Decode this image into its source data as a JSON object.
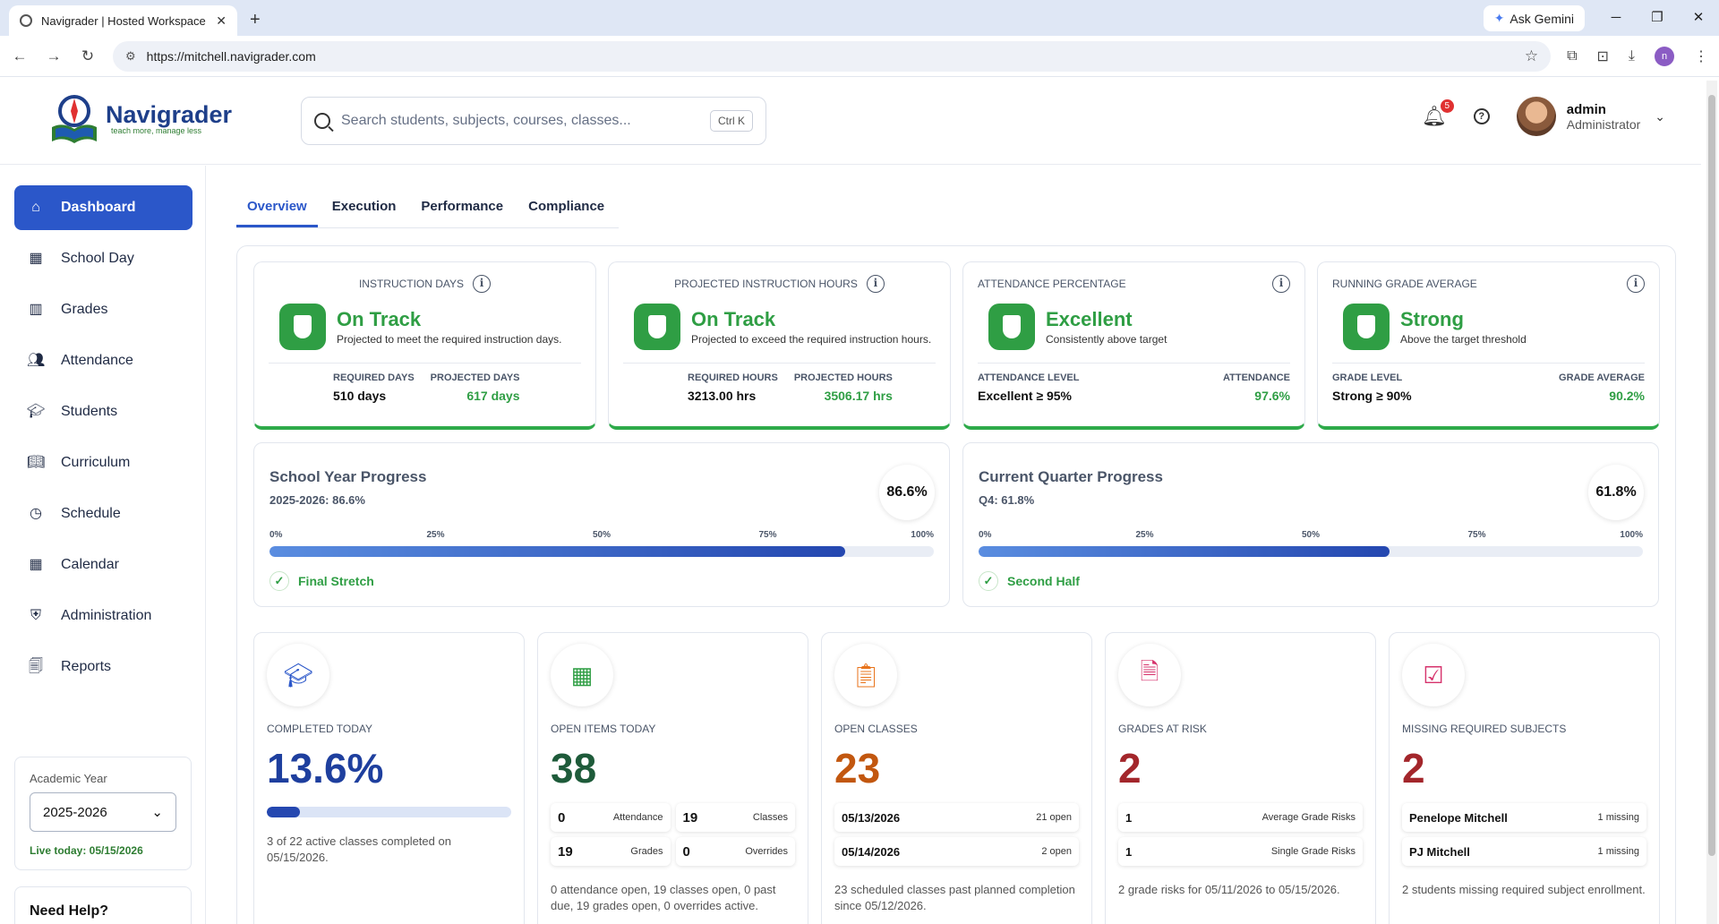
{
  "browser": {
    "tab_title": "Navigrader | Hosted Workspace",
    "url": "https://mitchell.navigrader.com",
    "gemini_label": "Ask Gemini",
    "profile_initial": "n"
  },
  "header": {
    "logo_name": "Navigrader",
    "logo_tagline": "teach more, manage less",
    "search_placeholder": "Search students, subjects, courses, classes...",
    "search_shortcut": "Ctrl K",
    "notification_count": "5",
    "user_name": "admin",
    "user_role": "Administrator"
  },
  "sidebar": {
    "items": [
      {
        "label": "Dashboard",
        "icon": "home-icon"
      },
      {
        "label": "School Day",
        "icon": "calendar-icon"
      },
      {
        "label": "Grades",
        "icon": "bar-chart-icon"
      },
      {
        "label": "Attendance",
        "icon": "people-icon"
      },
      {
        "label": "Students",
        "icon": "graduation-cap-icon"
      },
      {
        "label": "Curriculum",
        "icon": "book-icon"
      },
      {
        "label": "Schedule",
        "icon": "clock-icon"
      },
      {
        "label": "Calendar",
        "icon": "calendar-icon"
      },
      {
        "label": "Administration",
        "icon": "shield-gear-icon"
      },
      {
        "label": "Reports",
        "icon": "report-icon"
      }
    ],
    "academic_year_label": "Academic Year",
    "academic_year_value": "2025-2026",
    "live_today": "Live today: 05/15/2026",
    "help_title": "Need Help?"
  },
  "tabs": [
    "Overview",
    "Execution",
    "Performance",
    "Compliance"
  ],
  "kpis": [
    {
      "title": "INSTRUCTION DAYS",
      "status": "On Track",
      "sub": "Projected to meet the required instruction days.",
      "l1": "REQUIRED DAYS",
      "v1": "510 days",
      "l2": "PROJECTED DAYS",
      "v2": "617 days"
    },
    {
      "title": "PROJECTED INSTRUCTION HOURS",
      "status": "On Track",
      "sub": "Projected to exceed the required instruction hours.",
      "l1": "REQUIRED HOURS",
      "v1": "3213.00 hrs",
      "l2": "PROJECTED HOURS",
      "v2": "3506.17 hrs"
    },
    {
      "title": "ATTENDANCE PERCENTAGE",
      "status": "Excellent",
      "sub": "Consistently above target",
      "l1": "ATTENDANCE LEVEL",
      "v1": "Excellent ≥ 95%",
      "l2": "ATTENDANCE",
      "v2": "97.6%"
    },
    {
      "title": "RUNNING GRADE AVERAGE",
      "status": "Strong",
      "sub": "Above the target threshold",
      "l1": "GRADE LEVEL",
      "v1": "Strong ≥ 90%",
      "l2": "GRADE AVERAGE",
      "v2": "90.2%"
    }
  ],
  "progress": [
    {
      "title": "School Year Progress",
      "sub": "2025-2026: 86.6%",
      "pct": "86.6%",
      "value": 86.6,
      "milestone": "Final Stretch"
    },
    {
      "title": "Current Quarter Progress",
      "sub": "Q4: 61.8%",
      "pct": "61.8%",
      "value": 61.8,
      "milestone": "Second Half"
    }
  ],
  "ticks": [
    "0%",
    "25%",
    "50%",
    "75%",
    "100%"
  ],
  "completed_today": {
    "label": "COMPLETED TODAY",
    "value": "13.6%",
    "fraction": 0.136,
    "desc": "3 of 22 active classes completed on 05/15/2026.",
    "color": "#1e3f9e"
  },
  "open_items": {
    "label": "OPEN ITEMS TODAY",
    "value": "38",
    "color": "#1e5b3a",
    "cells": [
      {
        "v": "0",
        "l": "Attendance"
      },
      {
        "v": "19",
        "l": "Classes"
      },
      {
        "v": "19",
        "l": "Grades"
      },
      {
        "v": "0",
        "l": "Overrides"
      }
    ],
    "desc": "0 attendance open, 19 classes open, 0 past due, 19 grades open, 0 overrides active."
  },
  "open_classes": {
    "label": "OPEN CLASSES",
    "value": "23",
    "color": "#c2570f",
    "rows": [
      {
        "l": "05/13/2026",
        "r": "21 open"
      },
      {
        "l": "05/14/2026",
        "r": "2 open"
      }
    ],
    "desc": "23 scheduled classes past planned completion since 05/12/2026."
  },
  "grades_at_risk": {
    "label": "GRADES AT RISK",
    "value": "2",
    "color": "#a3262b",
    "rows": [
      {
        "l": "1",
        "r": "Average Grade Risks"
      },
      {
        "l": "1",
        "r": "Single Grade Risks"
      }
    ],
    "desc": "2 grade risks for 05/11/2026 to 05/15/2026."
  },
  "missing_subjects": {
    "label": "MISSING REQUIRED SUBJECTS",
    "value": "2",
    "color": "#a3262b",
    "rows": [
      {
        "l": "Penelope Mitchell",
        "r": "1 missing"
      },
      {
        "l": "PJ Mitchell",
        "r": "1 missing"
      }
    ],
    "desc": "2 students missing required subject enrollment."
  }
}
